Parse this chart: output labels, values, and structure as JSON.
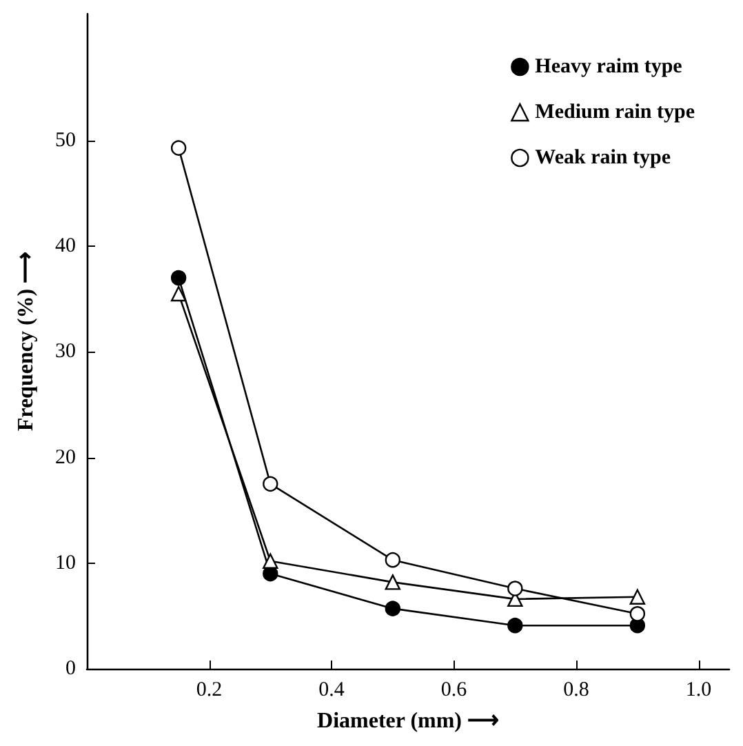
{
  "chart_data": {
    "type": "line",
    "xlabel": "Diameter (mm) ⟶",
    "ylabel": "Frequency (%) ⟶",
    "xlim": [
      0,
      1.05
    ],
    "xticks": [
      0.2,
      0.4,
      0.6,
      0.8,
      {
        "value": 1,
        "label": "1.0"
      }
    ],
    "ylim": [
      0,
      62
    ],
    "yticks": [
      0,
      10,
      20,
      30,
      40,
      50
    ],
    "grid": false,
    "legend": "top right",
    "line_style": "solid",
    "series": [
      {
        "name": "Heavy raim type",
        "color": "#000000",
        "marker": "circle",
        "colors": [
          "#000000",
          "#000000",
          "#000000",
          "#000000",
          "#000000"
        ],
        "x": [
          0.15,
          0.3,
          0.5,
          0.7,
          0.9
        ],
        "values": [
          37,
          9,
          5.7,
          4.1,
          4.1
        ]
      },
      {
        "name": "Medium rain type",
        "color": "#000000",
        "marker": "triangle",
        "colors": [
          "#ffffff",
          "#ffffff",
          "#ffffff",
          "#ffffff",
          "#ffffff"
        ],
        "x": [
          0.15,
          0.3,
          0.5,
          0.7,
          0.9
        ],
        "values": [
          35.5,
          10.2,
          8.2,
          6.6,
          6.8
        ]
      },
      {
        "name": "Weak rain type",
        "color": "#000000",
        "marker": "circle",
        "colors": [
          "#ffffff",
          "#ffffff",
          "#ffffff",
          "#ffffff",
          "#ffffff"
        ],
        "x": [
          0.15,
          0.3,
          0.5,
          0.7,
          0.9
        ],
        "values": [
          49.3,
          17.5,
          10.3,
          7.6,
          5.2
        ]
      }
    ]
  }
}
